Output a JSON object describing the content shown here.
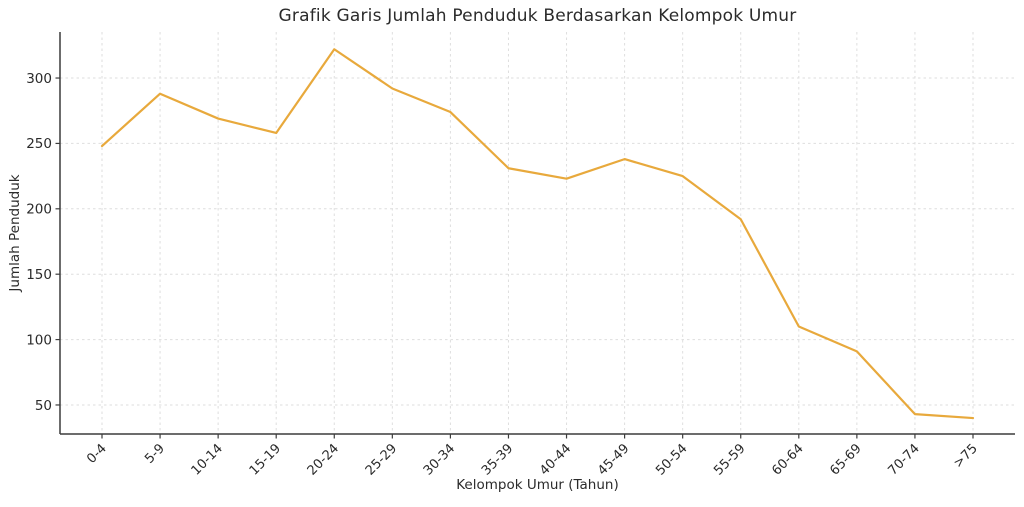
{
  "chart_data": {
    "type": "line",
    "title": "Grafik Garis Jumlah Penduduk Berdasarkan Kelompok Umur",
    "xlabel": "Kelompok Umur (Tahun)",
    "ylabel": "Jumlah Penduduk",
    "categories": [
      "0-4",
      "5-9",
      "10-14",
      "15-19",
      "20-24",
      "25-29",
      "30-34",
      "35-39",
      "40-44",
      "45-49",
      "50-54",
      "55-59",
      "60-64",
      "65-69",
      "70-74",
      ">75"
    ],
    "values": [
      248,
      288,
      269,
      258,
      322,
      292,
      274,
      231,
      223,
      238,
      225,
      192,
      110,
      91,
      43,
      40
    ],
    "y_ticks": [
      50,
      100,
      150,
      200,
      250,
      300
    ],
    "ylim": [
      27.8,
      335.2
    ],
    "x_tick_rotation_deg": 45,
    "grid": true,
    "grid_style": "dashed",
    "legend": "none",
    "line_color": "#E8A93C",
    "axis_color": "#3C3C3C",
    "grid_color": "#DEDEDE",
    "text_color": "#2B2B2B"
  }
}
